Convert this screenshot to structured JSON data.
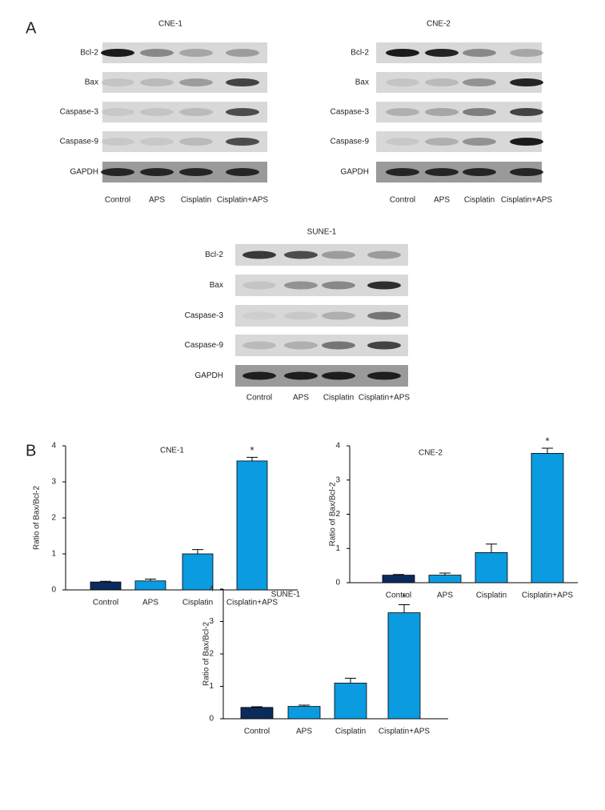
{
  "panel_labels": [
    "A",
    "B"
  ],
  "blots": [
    {
      "title": "CNE-1",
      "rows": [
        "Bcl-2",
        "Bax",
        "Caspase-3",
        "Caspase-9",
        "GAPDH"
      ],
      "lanes": [
        "Control",
        "APS",
        "Cisplatin",
        "Cisplatin+APS"
      ]
    },
    {
      "title": "CNE-2",
      "rows": [
        "Bcl-2",
        "Bax",
        "Caspase-3",
        "Caspase-9",
        "GAPDH"
      ],
      "lanes": [
        "Control",
        "APS",
        "Cisplatin",
        "Cisplatin+APS"
      ]
    },
    {
      "title": "SUNE-1",
      "rows": [
        "Bcl-2",
        "Bax",
        "Caspase-3",
        "Caspase-9",
        "GAPDH"
      ],
      "lanes": [
        "Control",
        "APS",
        "Cisplatin",
        "Cisplatin+APS"
      ]
    }
  ],
  "chart_data": [
    {
      "type": "bar",
      "title": "CNE-1",
      "y_label": "Ratio of Bax/Bcl-2",
      "categories": [
        "Control",
        "APS",
        "Cisplatin",
        "Cisplatin+APS"
      ],
      "values": [
        0.22,
        0.25,
        1.0,
        3.58
      ],
      "errors": [
        0.02,
        0.05,
        0.12,
        0.1
      ],
      "colors": [
        "#0b2b5c",
        "#0b9be0",
        "#0b9be0",
        "#0b9be0"
      ],
      "significance": [
        null,
        null,
        null,
        "*"
      ],
      "ylim": [
        0,
        4
      ],
      "yticks": [
        0,
        1,
        2,
        3,
        4
      ]
    },
    {
      "type": "bar",
      "title": "CNE-2",
      "y_label": "Ratio of Bax/Bcl-2",
      "categories": [
        "Control",
        "APS",
        "Cisplatin",
        "Cisplatin+APS"
      ],
      "values": [
        0.22,
        0.22,
        0.88,
        3.78
      ],
      "errors": [
        0.02,
        0.06,
        0.25,
        0.15
      ],
      "colors": [
        "#0b2b5c",
        "#0b9be0",
        "#0b9be0",
        "#0b9be0"
      ],
      "significance": [
        null,
        null,
        null,
        "*"
      ],
      "ylim": [
        0,
        4
      ],
      "yticks": [
        0,
        1,
        2,
        3,
        4
      ]
    },
    {
      "type": "bar",
      "title": "SUNE-1",
      "y_label": "Ratio of Bax/Bcl-2",
      "categories": [
        "Control",
        "APS",
        "Cisplatin",
        "Cisplatin+APS"
      ],
      "values": [
        0.35,
        0.38,
        1.1,
        3.27
      ],
      "errors": [
        0.02,
        0.04,
        0.15,
        0.25
      ],
      "colors": [
        "#0b2b5c",
        "#0b9be0",
        "#0b9be0",
        "#0b9be0"
      ],
      "significance": [
        null,
        null,
        null,
        "*"
      ],
      "ylim": [
        0,
        4
      ],
      "yticks": [
        0,
        1,
        2,
        3,
        4
      ]
    }
  ]
}
